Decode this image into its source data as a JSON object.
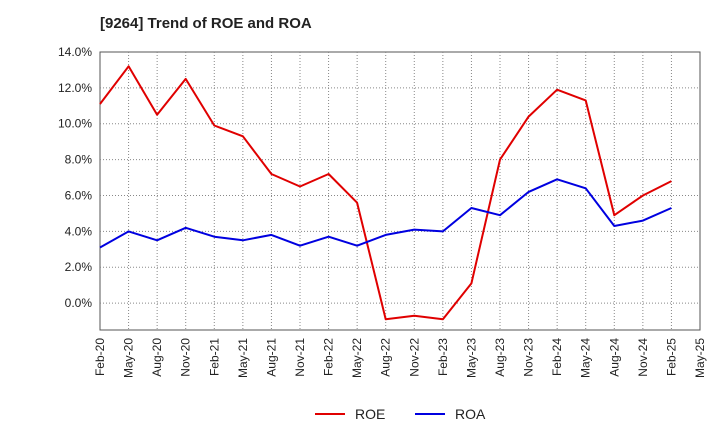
{
  "chart_data": {
    "type": "line",
    "title": "[9264]  Trend of ROE and ROA",
    "xlabel": "",
    "ylabel": "",
    "x": [
      "Feb-20",
      "May-20",
      "Aug-20",
      "Nov-20",
      "Feb-21",
      "May-21",
      "Aug-21",
      "Nov-21",
      "Feb-22",
      "May-22",
      "Aug-22",
      "Nov-22",
      "Feb-23",
      "May-23",
      "Aug-23",
      "Nov-23",
      "Feb-24",
      "May-24",
      "Aug-24",
      "Nov-24",
      "Feb-25",
      "May-25"
    ],
    "ylim": [
      -1.5,
      14.0
    ],
    "yticks": [
      0,
      2,
      4,
      6,
      8,
      10,
      12,
      14
    ],
    "ytick_labels": [
      "0.0%",
      "2.0%",
      "4.0%",
      "6.0%",
      "8.0%",
      "10.0%",
      "12.0%",
      "14.0%"
    ],
    "grid": true,
    "legend_position": "bottom",
    "series": [
      {
        "name": "ROE",
        "color": "#e00000",
        "values": [
          11.1,
          13.2,
          10.5,
          12.5,
          9.9,
          9.3,
          7.2,
          6.5,
          7.2,
          5.6,
          -0.9,
          -0.7,
          -0.9,
          1.1,
          8.0,
          10.4,
          11.9,
          11.3,
          4.9,
          6.0,
          6.8,
          null
        ]
      },
      {
        "name": "ROA",
        "color": "#0000e0",
        "values": [
          3.1,
          4.0,
          3.5,
          4.2,
          3.7,
          3.5,
          3.8,
          3.2,
          3.7,
          3.2,
          3.8,
          4.1,
          4.0,
          5.3,
          4.9,
          6.2,
          6.9,
          6.4,
          4.3,
          4.6,
          5.3,
          null
        ]
      }
    ]
  }
}
